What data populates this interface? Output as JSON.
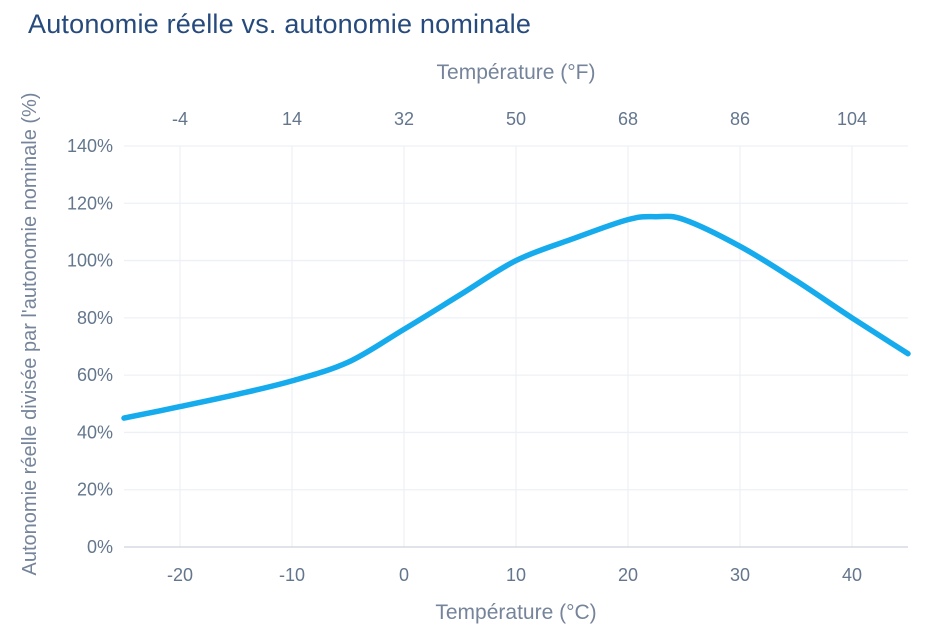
{
  "chart_data": {
    "type": "line",
    "title": "Autonomie réelle vs. autonomie nominale",
    "x_axis_top": {
      "label": "Température (°F)",
      "tick_labels": [
        "-4",
        "14",
        "32",
        "50",
        "68",
        "86",
        "104"
      ]
    },
    "x_axis_bottom": {
      "label": "Température (°C)",
      "tick_labels": [
        "-20",
        "-10",
        "0",
        "10",
        "20",
        "30",
        "40"
      ],
      "tick_values": [
        -20,
        -10,
        0,
        10,
        20,
        30,
        40
      ]
    },
    "y_axis": {
      "label": "Autonomie réelle divisée par l'autonomie nominale (%)",
      "tick_labels": [
        "0%",
        "20%",
        "40%",
        "60%",
        "80%",
        "100%",
        "120%",
        "140%"
      ],
      "tick_values": [
        0,
        20,
        40,
        60,
        80,
        100,
        120,
        140
      ]
    },
    "x_range": [
      -25,
      45
    ],
    "y_range": [
      0,
      140
    ],
    "grid": true,
    "legend": "none",
    "series": [
      {
        "x": [
          -25,
          -20,
          -15,
          -10,
          -5,
          0,
          5,
          10,
          15,
          20,
          22.5,
          25,
          30,
          35,
          40,
          45
        ],
        "y": [
          45,
          49,
          53.2,
          58,
          64.5,
          76,
          88,
          100,
          107.5,
          114.3,
          115.3,
          114.3,
          105,
          93,
          80,
          67.5
        ]
      }
    ],
    "colors": {
      "line": "#16abec",
      "title": "#274a7d",
      "tick_label": "#63768d",
      "axis_label": "#75849a",
      "gridline": "#edf0f6",
      "axis_line": "#d5dae2",
      "background": "#ffffff"
    }
  }
}
